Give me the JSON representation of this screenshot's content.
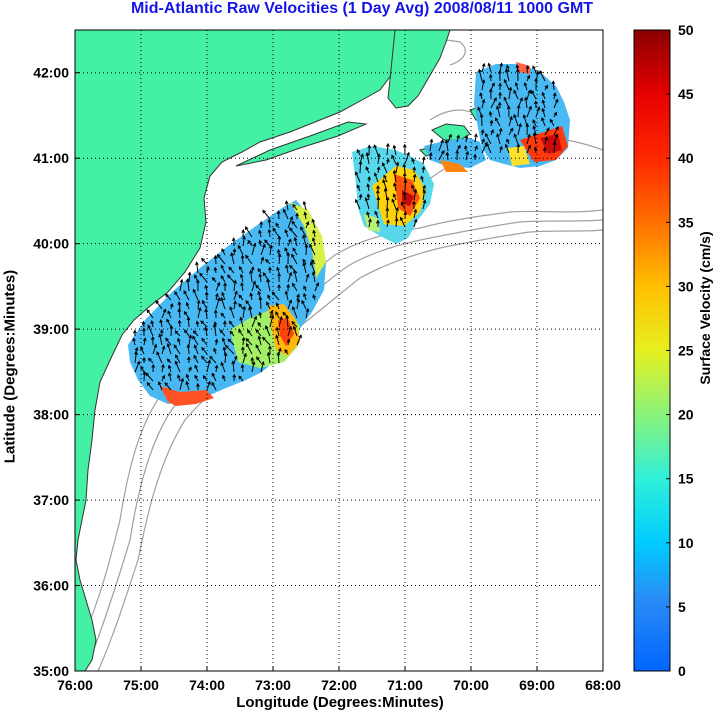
{
  "title": "Mid-Atlantic Raw Velocities (1 Day Avg) 2008/08/11 1000 GMT",
  "axes": {
    "xlabel": "Longitude (Degrees:Minutes)",
    "ylabel": "Latitude (Degrees:Minutes)",
    "xticks": [
      "76:00",
      "75:00",
      "74:00",
      "73:00",
      "72:00",
      "71:00",
      "70:00",
      "69:00",
      "68:00"
    ],
    "yticks": [
      "42:00",
      "41:00",
      "40:00",
      "39:00",
      "38:00",
      "37:00",
      "36:00",
      "35:00"
    ],
    "lon_range": [
      -76,
      -68
    ],
    "lat_range": [
      35,
      42.5
    ],
    "grid": "dotted"
  },
  "colorbar": {
    "label": "Surface Velocity (cm/s)",
    "ticks": [
      "0",
      "5",
      "10",
      "15",
      "20",
      "25",
      "30",
      "35",
      "40",
      "45",
      "50"
    ],
    "range": [
      0,
      50
    ],
    "colormap": "jet"
  },
  "colors": {
    "land": "#44f0a4",
    "ocean": "#ffffff",
    "bathymetry": "#a0a0a0",
    "title": "#1515e6"
  }
}
